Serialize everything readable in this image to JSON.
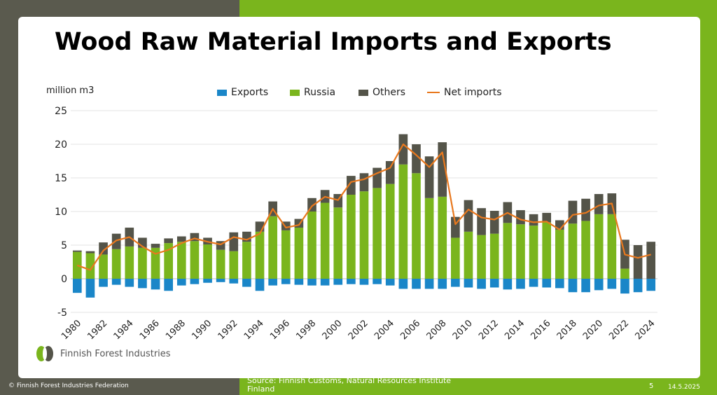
{
  "slide": {
    "title": "Wood Raw Material Imports and Exports",
    "logo_text": "Finnish Forest Industries",
    "copyright": "© Finnish Forest Industries Federation",
    "source": "Source: Finnish Customs, Natural Resources Institute Finland",
    "page_number": "5",
    "date": "14.5.2025"
  },
  "colors": {
    "exports": "#1a86c8",
    "russia": "#7ab51d",
    "others": "#545449",
    "net": "#e8781e"
  },
  "chart_data": {
    "type": "bar",
    "ylabel": "million m3",
    "ylim": [
      -5,
      25
    ],
    "yticks": [
      -5,
      0,
      5,
      10,
      15,
      20,
      25
    ],
    "x": [
      1980,
      1981,
      1982,
      1983,
      1984,
      1985,
      1986,
      1987,
      1988,
      1989,
      1990,
      1991,
      1992,
      1993,
      1994,
      1995,
      1996,
      1997,
      1998,
      1999,
      2000,
      2001,
      2002,
      2003,
      2004,
      2005,
      2006,
      2007,
      2008,
      2009,
      2010,
      2011,
      2012,
      2013,
      2014,
      2015,
      2016,
      2017,
      2018,
      2019,
      2020,
      2021,
      2022,
      2023,
      2024
    ],
    "xtick_labels": [
      "1980",
      "1982",
      "1984",
      "1986",
      "1988",
      "1990",
      "1992",
      "1994",
      "1996",
      "1998",
      "2000",
      "2002",
      "2004",
      "2006",
      "2008",
      "2010",
      "2012",
      "2014",
      "2016",
      "2018",
      "2020",
      "2022",
      "2024"
    ],
    "legend": [
      "Exports",
      "Russia",
      "Others",
      "Net imports"
    ],
    "series": [
      {
        "name": "Exports",
        "values": [
          -2.1,
          -2.8,
          -1.2,
          -0.9,
          -1.2,
          -1.4,
          -1.6,
          -1.8,
          -1.0,
          -0.8,
          -0.6,
          -0.5,
          -0.7,
          -1.2,
          -1.8,
          -1.0,
          -0.8,
          -0.9,
          -1.0,
          -1.0,
          -0.9,
          -0.8,
          -0.9,
          -0.8,
          -1.0,
          -1.5,
          -1.5,
          -1.5,
          -1.5,
          -1.2,
          -1.3,
          -1.5,
          -1.3,
          -1.6,
          -1.5,
          -1.2,
          -1.3,
          -1.4,
          -2.0,
          -2.0,
          -1.7,
          -1.5,
          -2.2,
          -2.0,
          -1.8
        ]
      },
      {
        "name": "Russia",
        "values": [
          4.0,
          3.8,
          3.6,
          4.4,
          4.8,
          4.6,
          4.6,
          5.3,
          5.5,
          5.6,
          5.1,
          4.3,
          4.1,
          5.5,
          7.0,
          9.3,
          7.2,
          7.6,
          10.0,
          11.3,
          10.6,
          12.5,
          13.0,
          13.5,
          14.1,
          17.0,
          15.7,
          12.0,
          12.2,
          6.1,
          7.0,
          6.5,
          6.7,
          8.3,
          8.1,
          7.9,
          8.4,
          7.3,
          8.2,
          8.6,
          9.6,
          9.6,
          1.5,
          0.0,
          0.0
        ]
      },
      {
        "name": "Others",
        "values": [
          0.2,
          0.3,
          1.8,
          2.3,
          2.8,
          1.5,
          0.6,
          0.7,
          0.8,
          1.2,
          1.0,
          1.3,
          2.8,
          1.5,
          1.5,
          2.2,
          1.3,
          1.3,
          2.0,
          1.9,
          2.0,
          2.8,
          2.7,
          3.0,
          3.4,
          4.5,
          4.3,
          6.2,
          8.1,
          3.1,
          4.7,
          4.0,
          3.4,
          3.1,
          2.1,
          1.7,
          1.4,
          1.4,
          3.4,
          3.3,
          3.0,
          3.1,
          4.3,
          5.0,
          5.5
        ]
      },
      {
        "name": "Net imports",
        "values": [
          2.0,
          1.3,
          4.2,
          5.7,
          6.2,
          4.8,
          3.7,
          4.3,
          5.3,
          6.0,
          5.5,
          5.1,
          6.2,
          5.8,
          6.7,
          10.4,
          7.6,
          8.0,
          10.8,
          12.2,
          11.7,
          14.4,
          14.8,
          15.7,
          16.5,
          20.0,
          18.4,
          16.6,
          18.8,
          8.1,
          10.3,
          9.1,
          8.8,
          9.8,
          8.8,
          8.4,
          8.5,
          7.3,
          9.5,
          9.8,
          10.9,
          11.2,
          3.6,
          3.1,
          3.6
        ]
      }
    ]
  }
}
